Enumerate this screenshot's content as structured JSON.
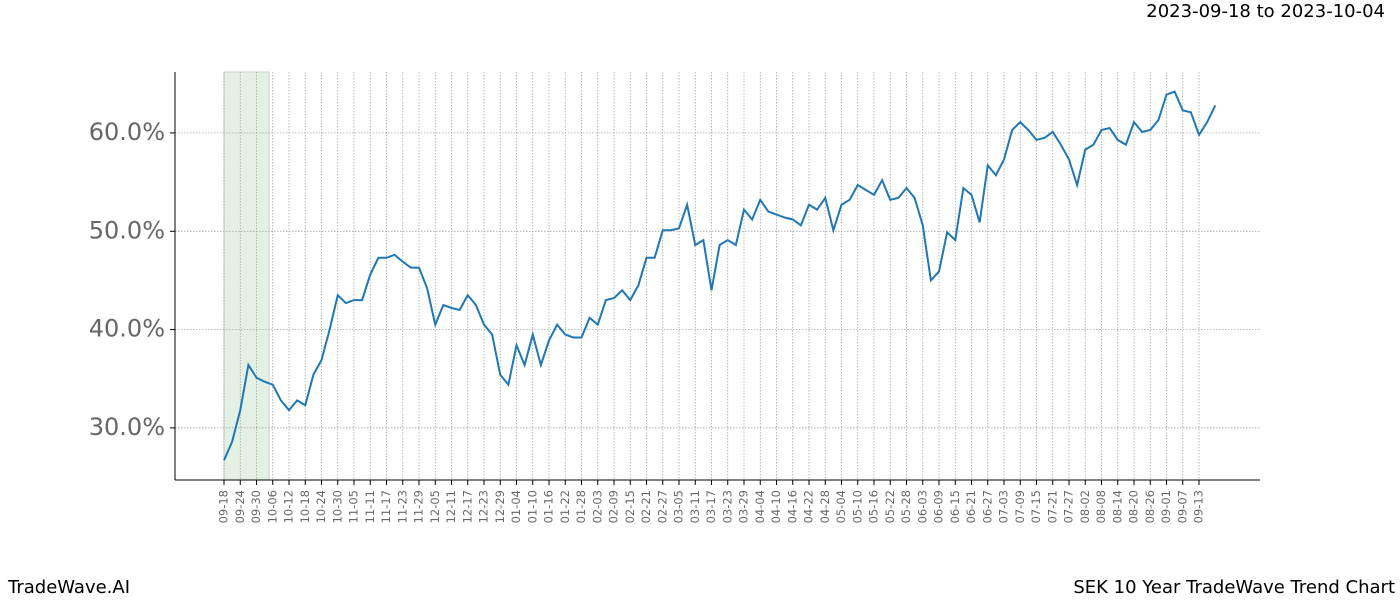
{
  "chart_data": {
    "type": "line",
    "subtitle": "2023-09-18 to 2023-10-04",
    "footer_left": "TradeWave.AI",
    "footer_right": "SEK 10 Year TradeWave Trend Chart",
    "categories": [
      "09-18",
      null,
      "09-24",
      null,
      "09-30",
      null,
      "10-06",
      null,
      "10-12",
      null,
      "10-18",
      null,
      "10-24",
      null,
      "10-30",
      null,
      "11-05",
      null,
      "11-11",
      null,
      "11-17",
      null,
      "11-23",
      null,
      "11-29",
      null,
      "12-05",
      null,
      "12-11",
      null,
      "12-17",
      null,
      "12-23",
      null,
      "12-29",
      null,
      "01-04",
      null,
      "01-10",
      null,
      "01-16",
      null,
      "01-22",
      null,
      "01-28",
      null,
      "02-03",
      null,
      "02-09",
      null,
      "02-15",
      null,
      "02-21",
      null,
      "02-27",
      null,
      "03-05",
      null,
      "03-11",
      null,
      "03-17",
      null,
      "03-23",
      null,
      "03-29",
      null,
      "04-04",
      null,
      "04-10",
      null,
      "04-16",
      null,
      "04-22",
      null,
      "04-28",
      null,
      "05-04",
      null,
      "05-10",
      null,
      "05-16",
      null,
      "05-22",
      null,
      "05-28",
      null,
      "06-03",
      null,
      "06-09",
      null,
      "06-15",
      null,
      "06-21",
      null,
      "06-27",
      null,
      "07-03",
      null,
      "07-09",
      null,
      "07-15",
      null,
      "07-21",
      null,
      "07-27",
      null,
      "08-02",
      null,
      "08-08",
      null,
      "08-14",
      null,
      "08-20",
      null,
      "08-26",
      null,
      "09-01",
      null,
      "09-07",
      null,
      "09-13",
      null,
      null
    ],
    "series": [
      {
        "color": "#1f77b4",
        "values": [
          26.7,
          28.6,
          31.8,
          36.4,
          35.1,
          34.7,
          34.4,
          32.8,
          31.8,
          32.8,
          32.3,
          35.4,
          36.9,
          40.0,
          43.5,
          42.7,
          43.0,
          43.0,
          45.6,
          47.3,
          47.3,
          47.6,
          46.9,
          46.3,
          46.3,
          44.2,
          40.5,
          42.5,
          42.2,
          42.0,
          43.5,
          42.5,
          40.5,
          39.5,
          35.4,
          34.4,
          38.4,
          36.4,
          39.5,
          36.4,
          38.9,
          40.5,
          39.5,
          39.2,
          39.2,
          41.2,
          40.5,
          43.0,
          43.2,
          44.0,
          43.0,
          44.5,
          47.3,
          47.3,
          50.1,
          50.1,
          50.3,
          52.7,
          48.6,
          49.1,
          44.0,
          48.6,
          49.1,
          48.6,
          52.2,
          51.2,
          53.2,
          52.0,
          51.7,
          51.4,
          51.2,
          50.6,
          52.7,
          52.2,
          53.4,
          50.1,
          52.7,
          53.2,
          54.7,
          54.2,
          53.7,
          55.2,
          53.2,
          53.4,
          54.4,
          53.4,
          50.6,
          45.0,
          45.9,
          49.9,
          49.1,
          54.4,
          53.7,
          50.9,
          56.7,
          55.7,
          57.3,
          60.3,
          61.1,
          60.3,
          59.3,
          59.5,
          60.1,
          58.8,
          57.3,
          54.7,
          58.3,
          58.8,
          60.3,
          60.5,
          59.3,
          58.8,
          61.1,
          60.1,
          60.3,
          61.3,
          63.9,
          64.2,
          62.3,
          62.1,
          59.8,
          61.1,
          62.8
        ]
      }
    ],
    "ylim": [
      24.7,
      66.2
    ],
    "yticks": [
      {
        "value": 30,
        "label": "30.0%"
      },
      {
        "value": 40,
        "label": "40.0%"
      },
      {
        "value": 50,
        "label": "50.0%"
      },
      {
        "value": 60,
        "label": "60.0%"
      }
    ],
    "grid": true
  }
}
